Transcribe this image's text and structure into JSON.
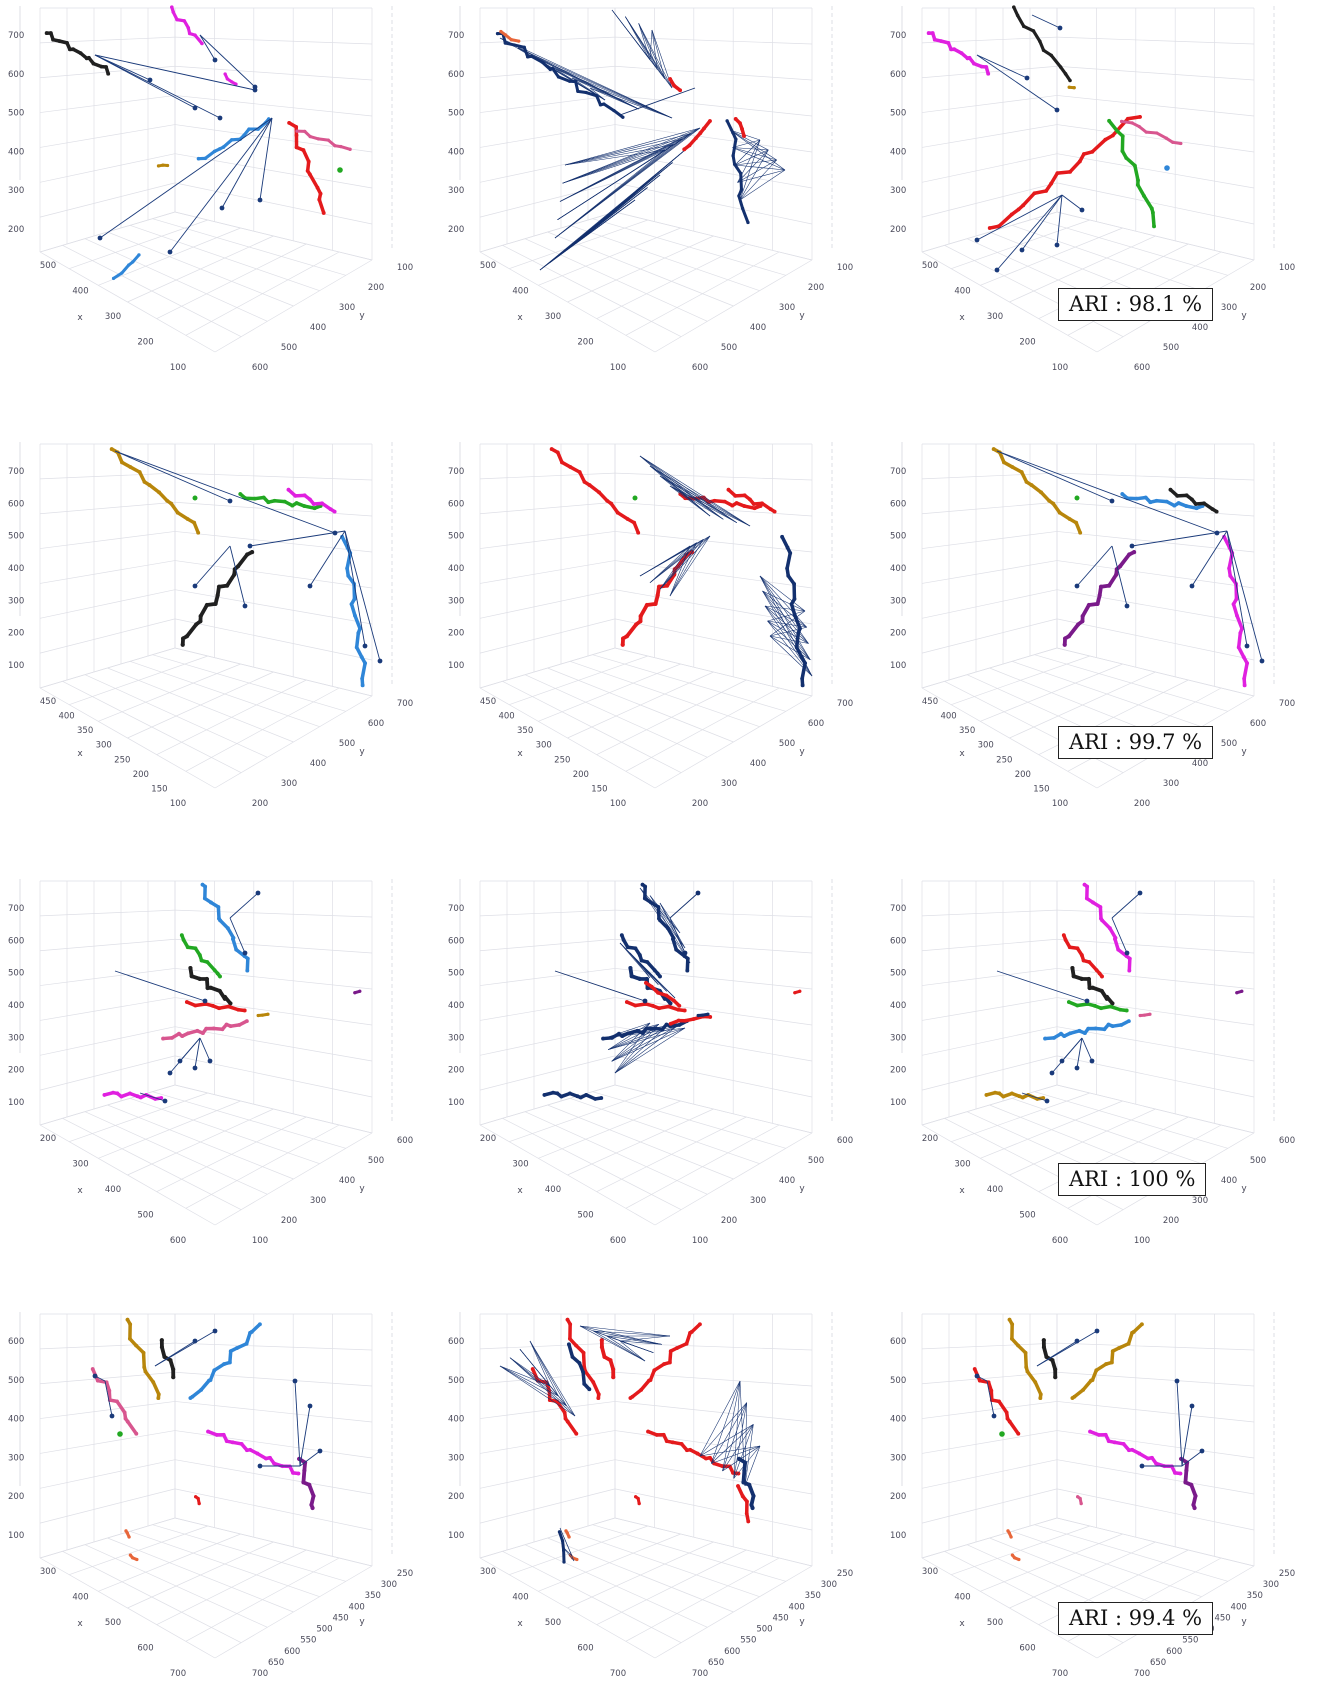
{
  "figure": {
    "panel_titles": [],
    "palette": {
      "black": "#202020",
      "magenta": "#e020e0",
      "blue": "#2f86d8",
      "red": "#e41a1c",
      "pink": "#d8568f",
      "green": "#22a822",
      "gold": "#b8860b",
      "orange": "#e8663a",
      "purple": "#7a1a8a",
      "edge": "#1a3a7a",
      "navy": "#13306e"
    }
  },
  "chart_data": [
    {
      "type": "scatter3d",
      "row": 1,
      "column": 1,
      "axes": {
        "x_label": "x",
        "y_label": "y",
        "x_ticks": [
          "500",
          "400",
          "300",
          "200",
          "100"
        ],
        "y_ticks": [
          "100",
          "200",
          "300",
          "400",
          "500",
          "600"
        ],
        "z_ticks": [
          "200",
          "300",
          "400",
          "500",
          "600",
          "700"
        ]
      },
      "clusters": [
        {
          "color": "black",
          "count": 1
        },
        {
          "color": "magenta",
          "count": 1
        },
        {
          "color": "blue",
          "count": 1
        },
        {
          "color": "red",
          "count": 1
        },
        {
          "color": "pink",
          "count": 1
        },
        {
          "color": "green",
          "count": 1
        },
        {
          "color": "gold",
          "count": 1
        }
      ]
    },
    {
      "type": "scatter3d",
      "row": 1,
      "column": 2,
      "axes": {
        "x_label": "x",
        "y_label": "y",
        "x_ticks": [
          "500",
          "400",
          "300",
          "200",
          "100"
        ],
        "y_ticks": [
          "100",
          "200",
          "300",
          "400",
          "500",
          "600"
        ],
        "z_ticks": [
          "200",
          "300",
          "400",
          "500",
          "600",
          "700"
        ]
      },
      "clusters": [
        {
          "color": "navy",
          "count": 1
        },
        {
          "color": "red",
          "count": 1
        },
        {
          "color": "orange",
          "count": 1
        }
      ]
    },
    {
      "type": "scatter3d",
      "row": 1,
      "column": 3,
      "ari": "ARI :  98.1 %",
      "axes": {
        "x_label": "x",
        "y_label": "y",
        "x_ticks": [
          "500",
          "400",
          "300",
          "200",
          "100"
        ],
        "y_ticks": [
          "100",
          "200",
          "300",
          "400",
          "500",
          "600"
        ],
        "z_ticks": [
          "200",
          "300",
          "400",
          "500",
          "600",
          "700"
        ]
      }
    },
    {
      "type": "scatter3d",
      "row": 2,
      "column": 1,
      "axes": {
        "x_label": "x",
        "y_label": "y",
        "x_ticks": [
          "450",
          "400",
          "350",
          "300",
          "250",
          "200",
          "150",
          "100"
        ],
        "y_ticks": [
          "700",
          "600",
          "500",
          "400",
          "300",
          "200"
        ],
        "z_ticks": [
          "100",
          "200",
          "300",
          "400",
          "500",
          "600",
          "700"
        ]
      }
    },
    {
      "type": "scatter3d",
      "row": 2,
      "column": 2,
      "axes": {
        "x_label": "x",
        "y_label": "y",
        "x_ticks": [
          "450",
          "400",
          "350",
          "300",
          "250",
          "200",
          "150",
          "100"
        ],
        "y_ticks": [
          "700",
          "600",
          "500",
          "400",
          "300",
          "200"
        ],
        "z_ticks": [
          "100",
          "200",
          "300",
          "400",
          "500",
          "600",
          "700"
        ]
      }
    },
    {
      "type": "scatter3d",
      "row": 2,
      "column": 3,
      "ari": "ARI :  99.7 %",
      "axes": {
        "x_label": "x",
        "y_label": "y",
        "x_ticks": [
          "450",
          "400",
          "350",
          "300",
          "250",
          "200",
          "150",
          "100"
        ],
        "y_ticks": [
          "700",
          "600",
          "500",
          "400",
          "300",
          "200"
        ],
        "z_ticks": [
          "100",
          "200",
          "300",
          "400",
          "500",
          "600",
          "700"
        ]
      }
    },
    {
      "type": "scatter3d",
      "row": 3,
      "column": 1,
      "axes": {
        "x_label": "x",
        "y_label": "y",
        "x_ticks": [
          "200",
          "300",
          "400",
          "500",
          "600"
        ],
        "y_ticks": [
          "600",
          "500",
          "400",
          "300",
          "200",
          "100"
        ],
        "z_ticks": [
          "100",
          "200",
          "300",
          "400",
          "500",
          "600",
          "700"
        ]
      }
    },
    {
      "type": "scatter3d",
      "row": 3,
      "column": 2,
      "axes": {
        "x_label": "x",
        "y_label": "y",
        "x_ticks": [
          "200",
          "300",
          "400",
          "500",
          "600"
        ],
        "y_ticks": [
          "600",
          "500",
          "400",
          "300",
          "200",
          "100"
        ],
        "z_ticks": [
          "100",
          "200",
          "300",
          "400",
          "500",
          "600",
          "700"
        ]
      }
    },
    {
      "type": "scatter3d",
      "row": 3,
      "column": 3,
      "ari": "ARI :  100 %",
      "axes": {
        "x_label": "x",
        "y_label": "y",
        "x_ticks": [
          "200",
          "300",
          "400",
          "500",
          "600"
        ],
        "y_ticks": [
          "600",
          "500",
          "400",
          "300",
          "200",
          "100"
        ],
        "z_ticks": [
          "100",
          "200",
          "300",
          "400",
          "500",
          "600",
          "700"
        ]
      }
    },
    {
      "type": "scatter3d",
      "row": 4,
      "column": 1,
      "axes": {
        "x_label": "x",
        "y_label": "y",
        "x_ticks": [
          "300",
          "400",
          "500",
          "600",
          "700"
        ],
        "y_ticks": [
          "250",
          "300",
          "350",
          "400",
          "450",
          "500",
          "550",
          "600",
          "650",
          "700"
        ],
        "z_ticks": [
          "100",
          "200",
          "300",
          "400",
          "500",
          "600"
        ]
      }
    },
    {
      "type": "scatter3d",
      "row": 4,
      "column": 2,
      "axes": {
        "x_label": "x",
        "y_label": "y",
        "x_ticks": [
          "300",
          "400",
          "500",
          "600",
          "700"
        ],
        "y_ticks": [
          "250",
          "300",
          "350",
          "400",
          "450",
          "500",
          "550",
          "600",
          "650",
          "700"
        ],
        "z_ticks": [
          "100",
          "200",
          "300",
          "400",
          "500",
          "600"
        ]
      }
    },
    {
      "type": "scatter3d",
      "row": 4,
      "column": 3,
      "ari": "ARI :  99.4 %",
      "axes": {
        "x_label": "x",
        "y_label": "y",
        "x_ticks": [
          "300",
          "400",
          "500",
          "600",
          "700"
        ],
        "y_ticks": [
          "250",
          "300",
          "350",
          "400",
          "450",
          "500",
          "550",
          "600",
          "650",
          "700"
        ],
        "z_ticks": [
          "100",
          "200",
          "300",
          "400",
          "500",
          "600"
        ]
      }
    }
  ]
}
